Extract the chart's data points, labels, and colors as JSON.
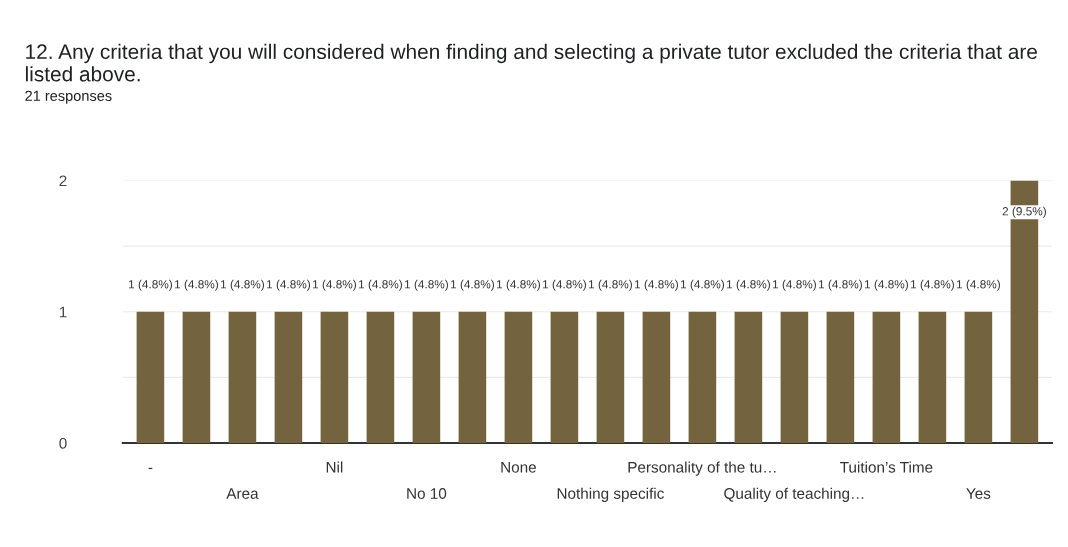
{
  "chart_data": {
    "type": "bar",
    "title": "12. Any criteria that you will considered when finding and selecting a private tutor excluded the criteria that are listed above.",
    "subtitle": "21 responses",
    "categories": [
      "-",
      null,
      "Area",
      null,
      "Nil",
      null,
      "No 10",
      null,
      "None",
      null,
      "Nothing specific",
      null,
      "Personality of the tu…",
      null,
      "Quality of teaching…",
      null,
      "Tuition’s Time",
      null,
      "Yes",
      null
    ],
    "values": [
      1,
      1,
      1,
      1,
      1,
      1,
      1,
      1,
      1,
      1,
      1,
      1,
      1,
      1,
      1,
      1,
      1,
      1,
      1,
      2
    ],
    "value_labels": [
      "1 (4.8%)",
      "1 (4.8%)",
      "1 (4.8%)",
      "1 (4.8%)",
      "1 (4.8%)",
      "1 (4.8%)",
      "1 (4.8%)",
      "1 (4.8%)",
      "1 (4.8%)",
      "1 (4.8%)",
      "1 (4.8%)",
      "1 (4.8%)",
      "1 (4.8%)",
      "1 (4.8%)",
      "1 (4.8%)",
      "1 (4.8%)",
      "1 (4.8%)",
      "1 (4.8%)",
      "1 (4.8%)",
      "2 (9.5%)"
    ],
    "color": "#73643f",
    "ylim": [
      0,
      2
    ],
    "yticks": [
      0,
      {
        "value": 0.5,
        "label": null
      },
      1,
      {
        "value": 1.5,
        "label": null
      },
      2
    ],
    "grid": "y"
  }
}
